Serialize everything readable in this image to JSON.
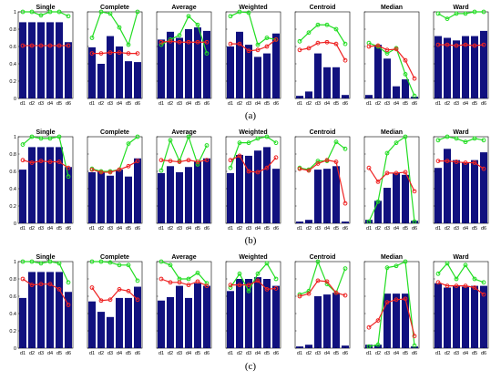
{
  "colors": {
    "bar": "#11117f",
    "green": "#22dd22",
    "red": "#ee2222"
  },
  "chart_data": {
    "type": "bar",
    "categories": [
      "d1",
      "d2",
      "d3",
      "d4",
      "d5",
      "d6"
    ],
    "ylim": [
      0,
      1
    ],
    "yticks": [
      "0",
      "0.2",
      "0.4",
      "0.6",
      "0.8",
      "1"
    ],
    "methods": [
      "Single",
      "Complete",
      "Average",
      "Weighted",
      "Centroid",
      "Median",
      "Ward"
    ],
    "rows": [
      {
        "label": "(a)",
        "panels": [
          {
            "title": "Single",
            "bars": [
              0.88,
              0.88,
              0.88,
              0.88,
              0.88,
              0.65
            ],
            "green": [
              1.0,
              1.0,
              0.96,
              1.0,
              1.0,
              0.95
            ],
            "red": [
              0.61,
              0.61,
              0.61,
              0.61,
              0.61,
              0.61
            ]
          },
          {
            "title": "Complete",
            "bars": [
              0.59,
              0.4,
              0.72,
              0.6,
              0.43,
              0.42
            ],
            "green": [
              0.7,
              1.0,
              0.98,
              0.82,
              0.62,
              1.0
            ],
            "red": [
              0.52,
              0.52,
              0.53,
              0.53,
              0.52,
              0.52
            ]
          },
          {
            "title": "Average",
            "bars": [
              0.68,
              0.77,
              0.7,
              0.8,
              0.82,
              0.78
            ],
            "green": [
              0.62,
              0.68,
              0.73,
              0.95,
              0.85,
              0.52
            ],
            "red": [
              0.65,
              0.66,
              0.65,
              0.65,
              0.65,
              0.65
            ]
          },
          {
            "title": "Weighted",
            "bars": [
              0.6,
              0.77,
              0.62,
              0.48,
              0.52,
              0.75
            ],
            "green": [
              0.95,
              1.0,
              0.99,
              0.62,
              0.7,
              0.68
            ],
            "red": [
              0.63,
              0.63,
              0.55,
              0.56,
              0.6,
              0.68
            ]
          },
          {
            "title": "Centroid",
            "bars": [
              0.03,
              0.08,
              0.52,
              0.36,
              0.36,
              0.04
            ],
            "green": [
              0.66,
              0.76,
              0.85,
              0.85,
              0.8,
              0.63
            ],
            "red": [
              0.56,
              0.58,
              0.64,
              0.65,
              0.63,
              0.44
            ]
          },
          {
            "title": "Median",
            "bars": [
              0.04,
              0.62,
              0.46,
              0.14,
              0.22,
              0.02
            ],
            "green": [
              0.64,
              0.6,
              0.52,
              0.58,
              0.28,
              0.03
            ],
            "red": [
              0.6,
              0.61,
              0.56,
              0.57,
              0.44,
              0.23
            ]
          },
          {
            "title": "Ward",
            "bars": [
              0.72,
              0.7,
              0.67,
              0.72,
              0.72,
              0.78
            ],
            "green": [
              0.98,
              0.92,
              0.98,
              0.98,
              1.0,
              1.0
            ],
            "red": [
              0.62,
              0.62,
              0.61,
              0.62,
              0.61,
              0.62
            ]
          }
        ]
      },
      {
        "label": "(b)",
        "panels": [
          {
            "title": "Single",
            "bars": [
              0.62,
              0.88,
              0.88,
              0.88,
              0.88,
              0.65
            ],
            "green": [
              0.91,
              1.0,
              0.98,
              0.98,
              1.0,
              0.54
            ],
            "red": [
              0.73,
              0.7,
              0.72,
              0.71,
              0.71,
              0.64
            ]
          },
          {
            "title": "Complete",
            "bars": [
              0.59,
              0.6,
              0.55,
              0.62,
              0.54,
              0.75
            ],
            "green": [
              0.63,
              0.6,
              0.6,
              0.62,
              0.92,
              1.0
            ],
            "red": [
              0.62,
              0.59,
              0.59,
              0.62,
              0.66,
              0.72
            ]
          },
          {
            "title": "Average",
            "bars": [
              0.58,
              0.66,
              0.59,
              0.65,
              0.71,
              0.75
            ],
            "green": [
              0.61,
              0.96,
              0.72,
              1.0,
              0.68,
              0.9
            ],
            "red": [
              0.73,
              0.72,
              0.71,
              0.73,
              0.71,
              0.73
            ]
          },
          {
            "title": "Weighted",
            "bars": [
              0.58,
              0.79,
              0.78,
              0.84,
              0.88,
              0.63
            ],
            "green": [
              0.64,
              0.93,
              0.93,
              0.98,
              1.0,
              0.93
            ],
            "red": [
              0.73,
              0.78,
              0.6,
              0.59,
              0.64,
              0.76
            ]
          },
          {
            "title": "Centroid",
            "bars": [
              0.02,
              0.04,
              0.62,
              0.63,
              0.66,
              0.02
            ],
            "green": [
              0.64,
              0.62,
              0.72,
              0.72,
              0.94,
              0.86
            ],
            "red": [
              0.63,
              0.61,
              0.69,
              0.73,
              0.71,
              0.23
            ]
          },
          {
            "title": "Median",
            "bars": [
              0.04,
              0.26,
              0.41,
              0.58,
              0.56,
              0.03
            ],
            "green": [
              0.02,
              0.25,
              0.81,
              0.93,
              1.0,
              0.02
            ],
            "red": [
              0.64,
              0.48,
              0.58,
              0.58,
              0.59,
              0.37
            ]
          },
          {
            "title": "Ward",
            "bars": [
              0.64,
              0.86,
              0.73,
              0.7,
              0.73,
              0.82
            ],
            "green": [
              0.96,
              1.0,
              0.98,
              0.94,
              0.98,
              0.96
            ],
            "red": [
              0.72,
              0.72,
              0.71,
              0.7,
              0.7,
              0.63
            ]
          }
        ]
      },
      {
        "label": "(c)",
        "panels": [
          {
            "title": "Single",
            "bars": [
              0.58,
              0.88,
              0.88,
              0.88,
              0.88,
              0.65
            ],
            "green": [
              1.0,
              1.0,
              0.98,
              1.0,
              0.98,
              0.76
            ],
            "red": [
              0.8,
              0.73,
              0.74,
              0.74,
              0.68,
              0.5
            ]
          },
          {
            "title": "Complete",
            "bars": [
              0.54,
              0.42,
              0.36,
              0.58,
              0.58,
              0.71
            ],
            "green": [
              1.0,
              1.0,
              0.99,
              0.96,
              0.96,
              0.78
            ],
            "red": [
              0.7,
              0.55,
              0.56,
              0.68,
              0.66,
              0.56
            ]
          },
          {
            "title": "Average",
            "bars": [
              0.55,
              0.59,
              0.72,
              0.58,
              0.75,
              0.72
            ],
            "green": [
              1.0,
              0.96,
              0.8,
              0.8,
              0.87,
              0.75
            ],
            "red": [
              0.8,
              0.76,
              0.76,
              0.73,
              0.77,
              0.72
            ]
          },
          {
            "title": "Weighted",
            "bars": [
              0.66,
              0.8,
              0.8,
              0.82,
              0.8,
              0.72
            ],
            "green": [
              0.7,
              0.86,
              0.66,
              0.86,
              0.98,
              0.8
            ],
            "red": [
              0.73,
              0.73,
              0.73,
              0.78,
              0.68,
              0.69
            ]
          },
          {
            "title": "Centroid",
            "bars": [
              0.02,
              0.04,
              0.6,
              0.62,
              0.64,
              0.03
            ],
            "green": [
              0.62,
              0.66,
              1.0,
              0.74,
              0.64,
              0.92
            ],
            "red": [
              0.6,
              0.63,
              0.78,
              0.77,
              0.64,
              0.61
            ]
          },
          {
            "title": "Median",
            "bars": [
              0.04,
              0.04,
              0.63,
              0.63,
              0.63,
              0.02
            ],
            "green": [
              0.02,
              0.04,
              0.93,
              0.95,
              1.0,
              0.03
            ],
            "red": [
              0.24,
              0.32,
              0.53,
              0.56,
              0.57,
              0.14
            ]
          },
          {
            "title": "Ward",
            "bars": [
              0.75,
              0.7,
              0.72,
              0.71,
              0.72,
              0.72
            ],
            "green": [
              0.86,
              0.98,
              0.8,
              0.96,
              0.8,
              0.76
            ],
            "red": [
              0.76,
              0.72,
              0.72,
              0.72,
              0.7,
              0.62
            ]
          }
        ]
      }
    ]
  }
}
